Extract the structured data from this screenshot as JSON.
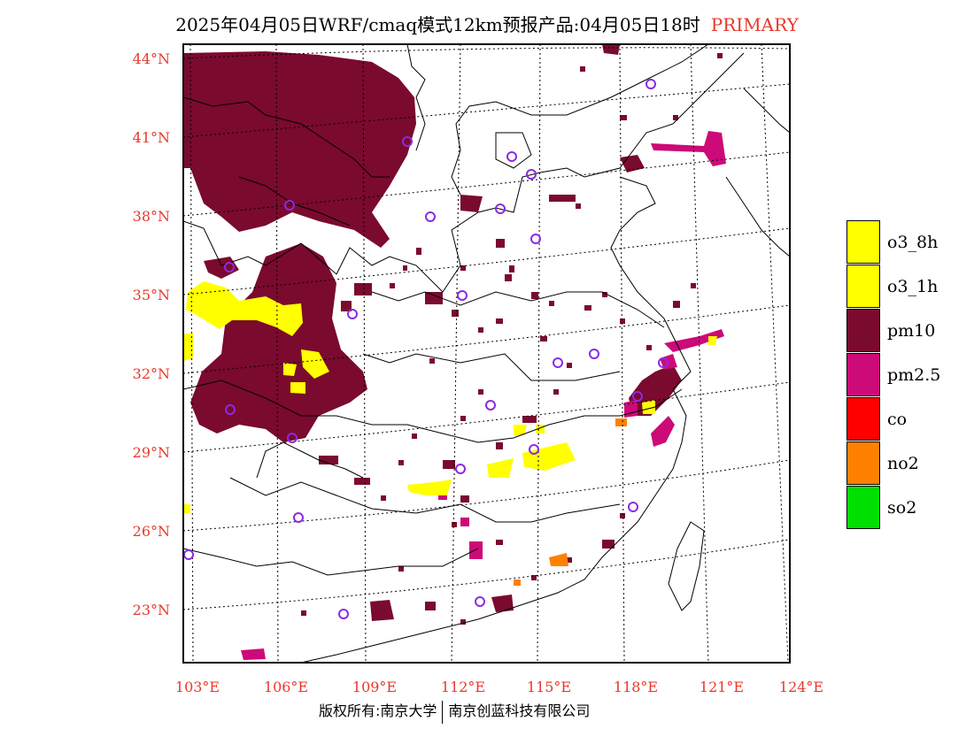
{
  "title": "2025年04月05日WRF/cmaq模式12km预报产品:04月05日18时",
  "title_tag": "PRIMARY",
  "lat_labels": [
    "44°N",
    "41°N",
    "38°N",
    "35°N",
    "32°N",
    "29°N",
    "26°N",
    "23°N"
  ],
  "lon_labels": [
    "103°E",
    "106°E",
    "109°E",
    "112°E",
    "115°E",
    "118°E",
    "121°E",
    "124°E"
  ],
  "legend": [
    {
      "label": "o3_8h",
      "color": "#ffff00"
    },
    {
      "label": "o3_1h",
      "color": "#ffff00"
    },
    {
      "label": "pm10",
      "color": "#7a0a2e"
    },
    {
      "label": "pm2.5",
      "color": "#cc0a78"
    },
    {
      "label": "co",
      "color": "#ff0000"
    },
    {
      "label": "no2",
      "color": "#ff8000"
    },
    {
      "label": "so2",
      "color": "#00e000"
    }
  ],
  "footer_left": "版权所有:南京大学",
  "footer_right": "南京创蓝科技有限公司",
  "colors": {
    "label_red": "#e8382c",
    "pm10": "#7a0a2e",
    "pm25": "#cc0a78",
    "o3": "#ffff00",
    "no2": "#ff8000",
    "station": "#8a2be2"
  }
}
